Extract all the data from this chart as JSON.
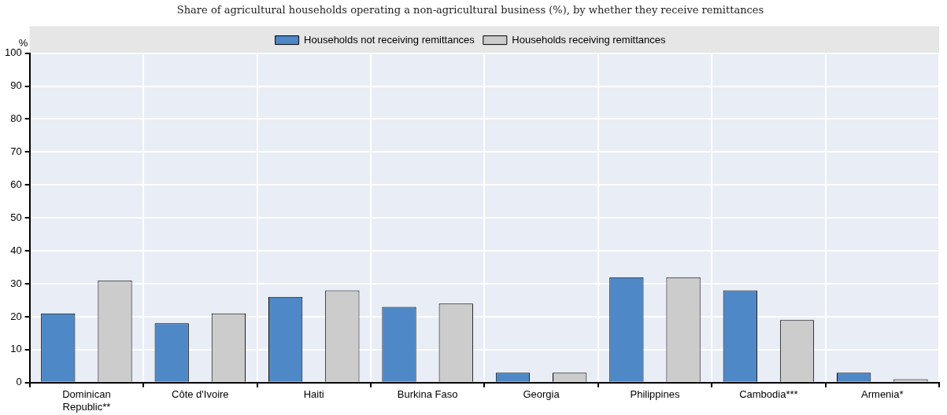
{
  "chart_data": {
    "type": "bar",
    "subtitle": "Share of agricultural households operating a non-agricultural business (%), by whether they receive remittances",
    "ylabel": "%",
    "categories": [
      "Dominican Republic**",
      "Côte d'Ivoire",
      "Haiti",
      "Burkina Faso",
      "Georgia",
      "Philippines",
      "Cambodia***",
      "Armenia*"
    ],
    "series": [
      {
        "name": "Households not receiving remittances",
        "color": "#4e88c7",
        "values": [
          21,
          18,
          26,
          23,
          3,
          32,
          28,
          3
        ]
      },
      {
        "name": "Households receiving remittances",
        "color": "#cccccc",
        "values": [
          31,
          21,
          28,
          24,
          3,
          32,
          19,
          1
        ]
      }
    ],
    "ylim": [
      0,
      100
    ],
    "yticks": [
      0,
      10,
      20,
      30,
      40,
      50,
      60,
      70,
      80,
      90,
      100
    ],
    "grid": true,
    "legend": "top"
  }
}
